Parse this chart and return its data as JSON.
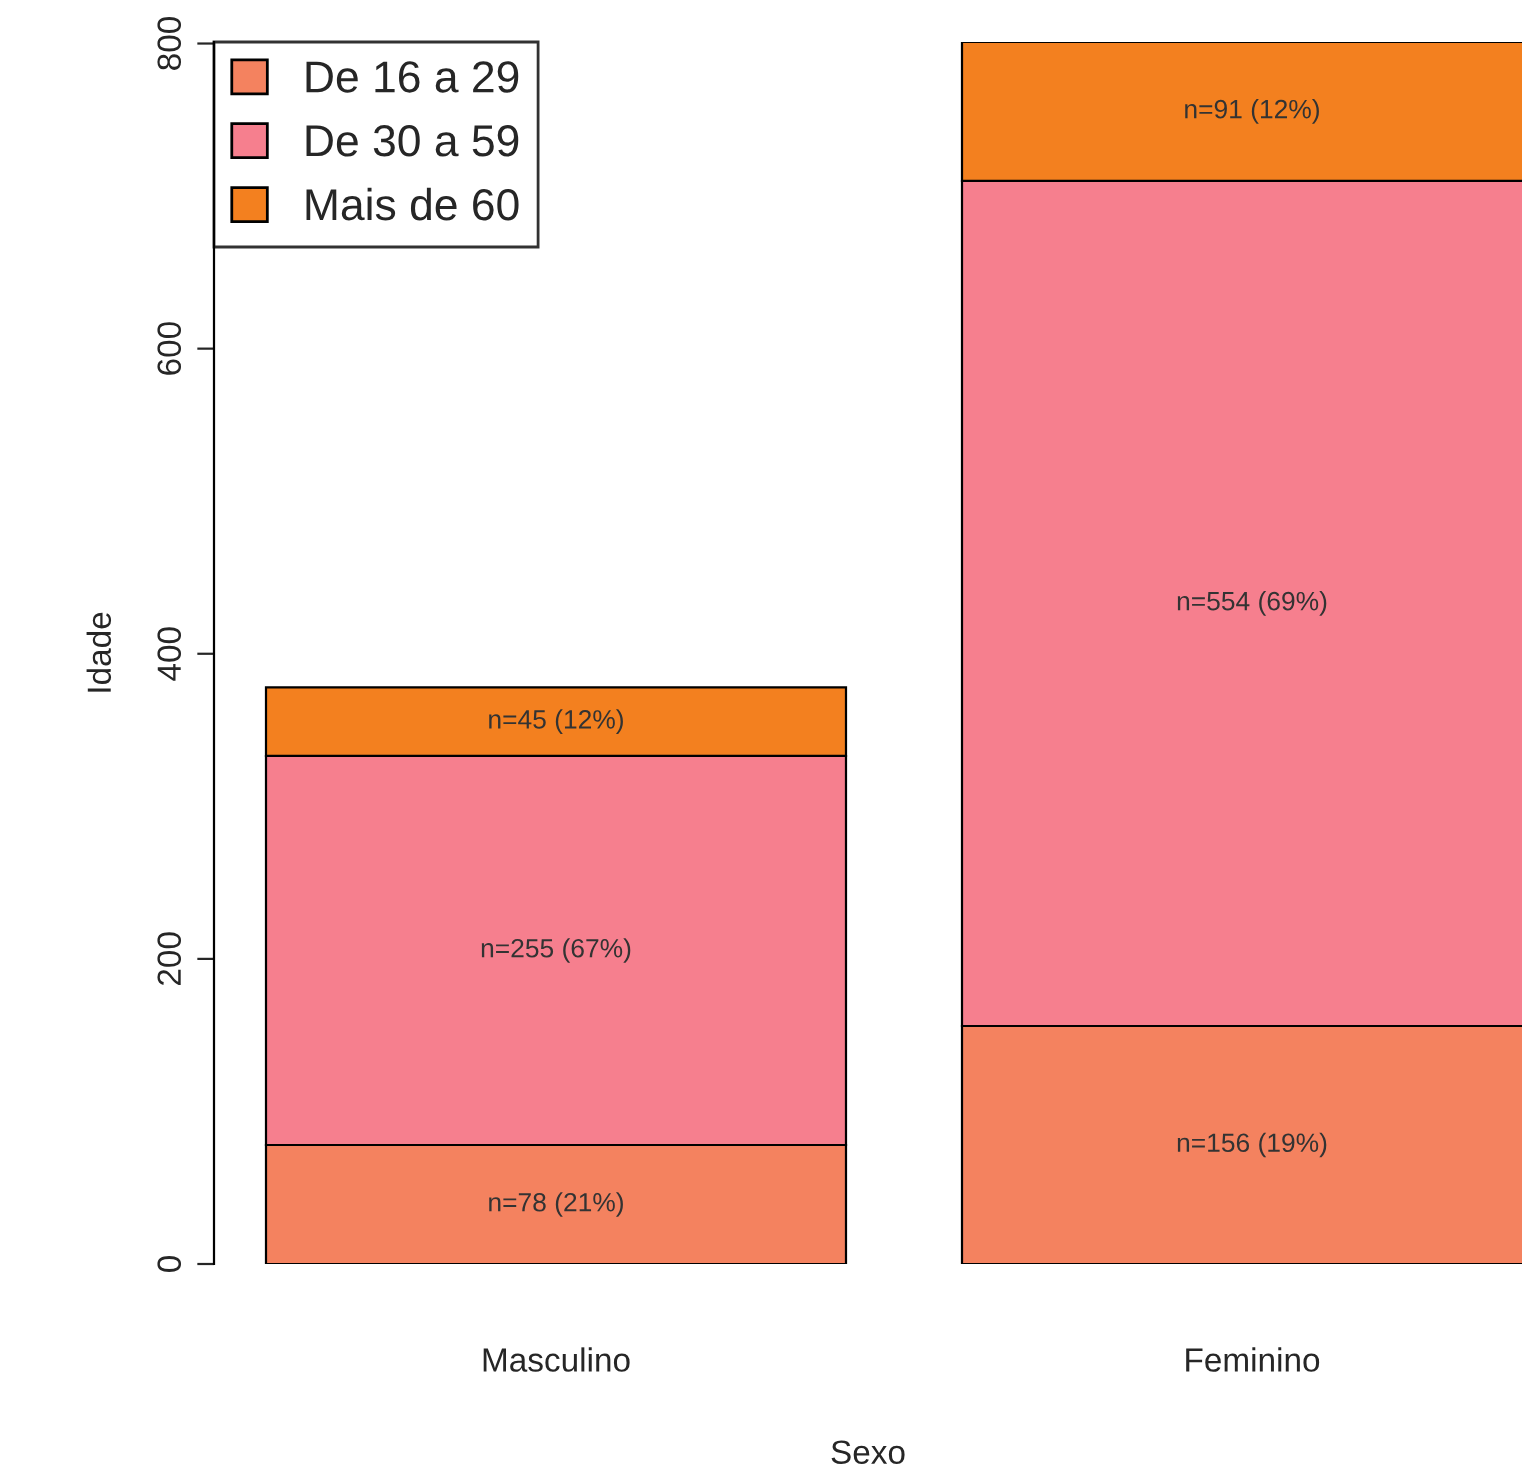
{
  "chart_data": {
    "type": "bar",
    "stacked": true,
    "xlabel": "Sexo",
    "ylabel": "Idade",
    "categories": [
      "Masculino",
      "Feminino"
    ],
    "series": [
      {
        "name": "De 16 a 29",
        "color": "#f4825f",
        "values": [
          78,
          156
        ],
        "value_labels": [
          "n=78 (21%)",
          "n=156 (19%)"
        ]
      },
      {
        "name": "De 30 a 59",
        "color": "#f67f8e",
        "values": [
          255,
          554
        ],
        "value_labels": [
          "n=255 (67%)",
          "n=554 (69%)"
        ]
      },
      {
        "name": "Mais de 60",
        "color": "#f3801f",
        "values": [
          45,
          91
        ],
        "value_labels": [
          "n=45 (12%)",
          "n=91 (12%)"
        ]
      }
    ],
    "ylim": [
      0,
      801
    ],
    "yticks": [
      0,
      200,
      400,
      600,
      800
    ],
    "legend": "top left",
    "grid": false
  }
}
